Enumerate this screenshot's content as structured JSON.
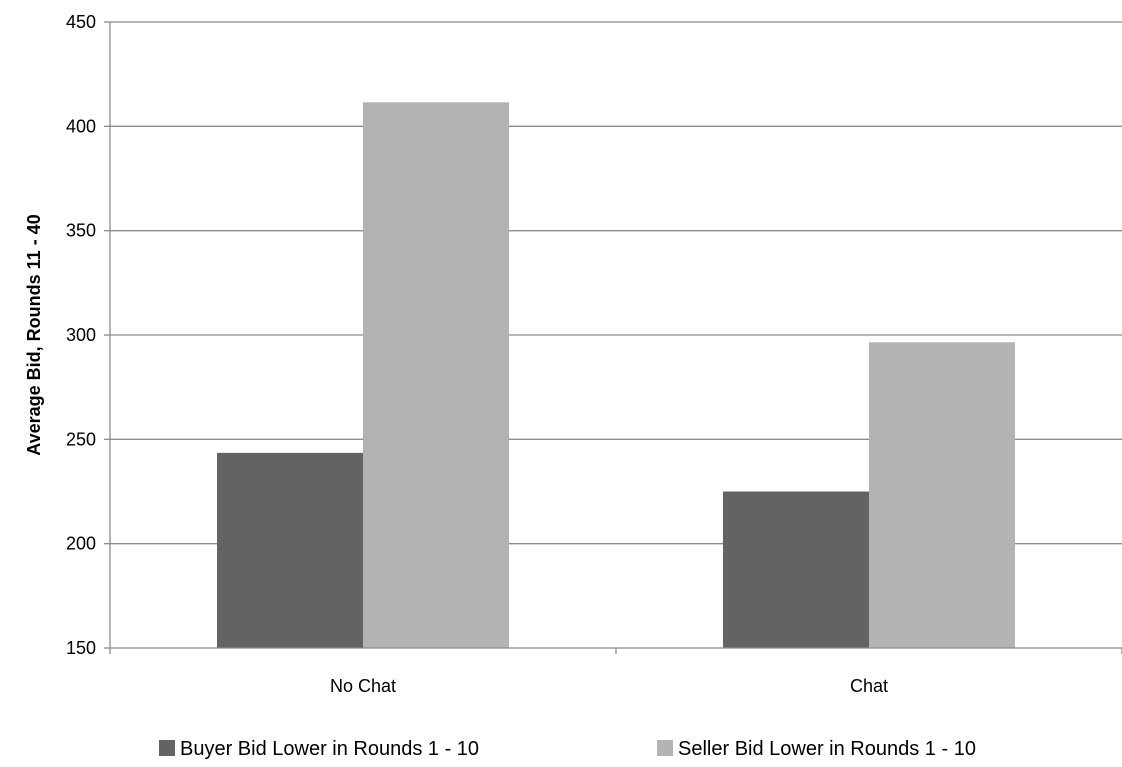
{
  "chart_data": {
    "type": "bar",
    "title": "",
    "xlabel": "",
    "ylabel": "Average Bid, Rounds 11 - 40",
    "ylim": [
      150,
      450
    ],
    "yticks": [
      150,
      200,
      250,
      300,
      350,
      400,
      450
    ],
    "categories": [
      "No Chat",
      "Chat"
    ],
    "series": [
      {
        "name": "Buyer Bid Lower in Rounds 1 - 10",
        "color": "#636363",
        "values": [
          243.5,
          225
        ]
      },
      {
        "name": "Seller Bid Lower in Rounds 1 - 10",
        "color": "#b3b3b3",
        "values": [
          411.5,
          296.5
        ]
      }
    ],
    "grid": true,
    "legend_position": "bottom"
  }
}
